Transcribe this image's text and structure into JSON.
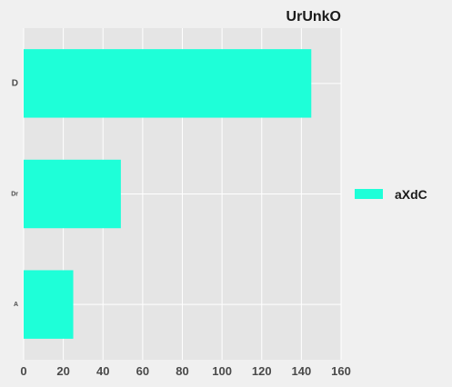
{
  "chart_data": {
    "type": "bar",
    "orientation": "horizontal",
    "title": "UrUnkO",
    "xlabel": "",
    "ylabel": "",
    "categories": [
      "D",
      "Dr",
      "A"
    ],
    "series": [
      {
        "name": "aXdC",
        "values": [
          145,
          49,
          25
        ],
        "color": "#1effd8"
      }
    ],
    "xlim": [
      0,
      160
    ],
    "xticks": [
      0,
      20,
      40,
      60,
      80,
      100,
      120,
      140,
      160
    ],
    "grid": true,
    "legend_position": "right",
    "colors": {
      "plot_background": "#e5e5e5",
      "figure_background": "#f0f0f0",
      "grid": "#ffffff",
      "bar": "#1effd8"
    }
  }
}
